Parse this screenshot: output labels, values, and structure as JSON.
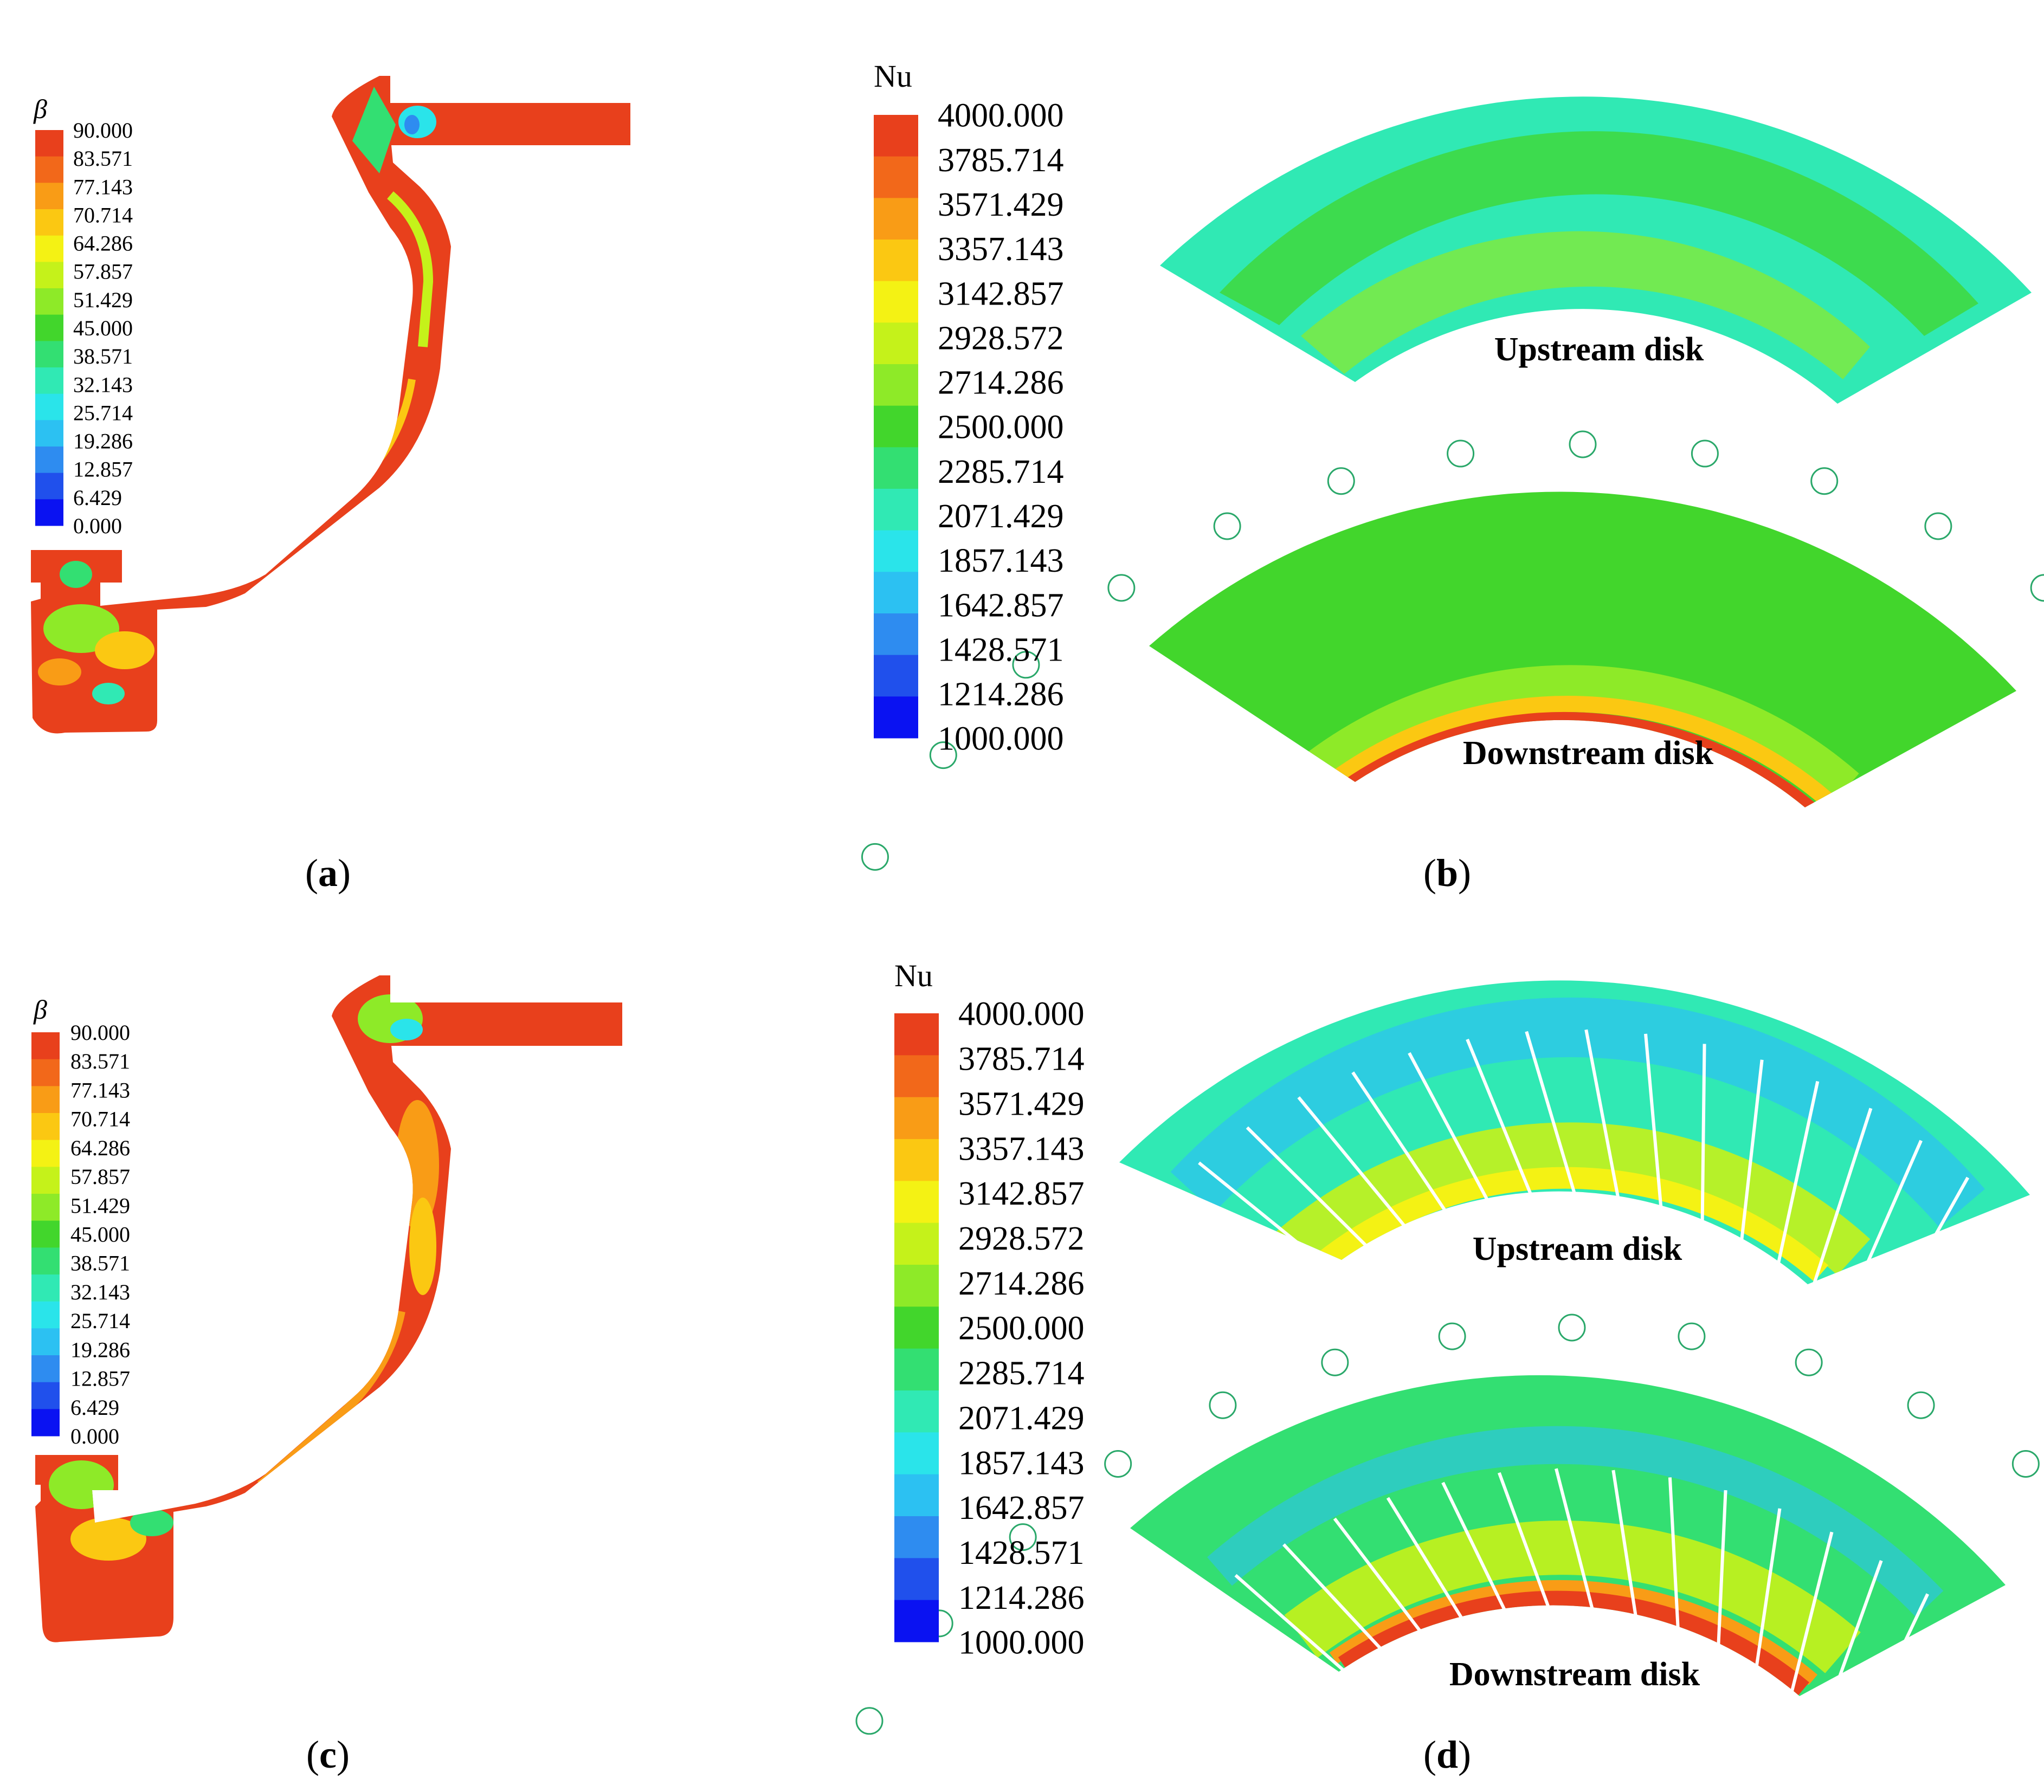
{
  "beta_legend": {
    "symbol": "β",
    "ticks": [
      "90.000",
      "83.571",
      "77.143",
      "70.714",
      "64.286",
      "57.857",
      "51.429",
      "45.000",
      "38.571",
      "32.143",
      "25.714",
      "19.286",
      "12.857",
      "6.429",
      "0.000"
    ]
  },
  "nu_legend": {
    "symbol": "Nu",
    "ticks": [
      "4000.000",
      "3785.714",
      "3571.429",
      "3357.143",
      "3142.857",
      "2928.572",
      "2714.286",
      "2500.000",
      "2285.714",
      "2071.429",
      "1857.143",
      "1642.857",
      "1428.571",
      "1214.286",
      "1000.000"
    ]
  },
  "colormap": [
    "#e8401c",
    "#f2681a",
    "#f99c16",
    "#fbc812",
    "#f4f214",
    "#c5f21a",
    "#8eea28",
    "#42d62c",
    "#33df72",
    "#30e9b4",
    "#2ae4ea",
    "#2cc1f2",
    "#2e8cf0",
    "#2050ec",
    "#0a12f2"
  ],
  "panels": {
    "a": {
      "label_open": "(",
      "letter": "a",
      "label_close": ")"
    },
    "b": {
      "label_open": "(",
      "letter": "b",
      "label_close": ")",
      "upstream": "Upstream disk",
      "downstream": "Downstream disk"
    },
    "c": {
      "label_open": "(",
      "letter": "c",
      "label_close": ")"
    },
    "d": {
      "label_open": "(",
      "letter": "d",
      "label_close": ")",
      "upstream": "Upstream disk",
      "downstream": "Downstream disk"
    }
  }
}
